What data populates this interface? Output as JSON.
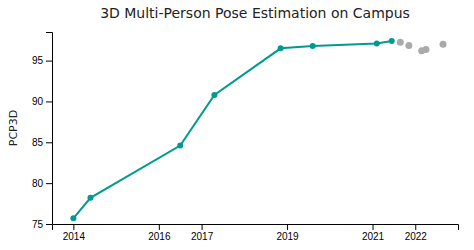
{
  "chart_data": {
    "type": "line",
    "title": "3D Multi-Person Pose Estimation on Campus",
    "ylabel": "PCP3D",
    "xlim": [
      2013.5,
      2023.0
    ],
    "ylim": [
      75,
      98.5
    ],
    "xticks": [
      2014,
      2016,
      2017,
      2019,
      2021,
      2022
    ],
    "yticks": [
      75,
      80,
      85,
      90,
      95
    ],
    "grid": false,
    "series": [
      {
        "type": "line",
        "color": "#009B8D",
        "marker": "circle",
        "x": [
          2014,
          2014.4,
          2016.5,
          2017.3,
          2018.85,
          2019.6,
          2021.1,
          2021.45
        ],
        "values": [
          75.7,
          78.2,
          84.6,
          90.8,
          96.5,
          96.8,
          97.1,
          97.4
        ]
      },
      {
        "type": "scatter",
        "color": "#aaaaaa",
        "marker": "circle",
        "x": [
          2021.65,
          2021.85,
          2022.15,
          2022.25,
          2022.65
        ],
        "values": [
          97.25,
          96.85,
          96.2,
          96.35,
          97.0
        ]
      }
    ]
  }
}
